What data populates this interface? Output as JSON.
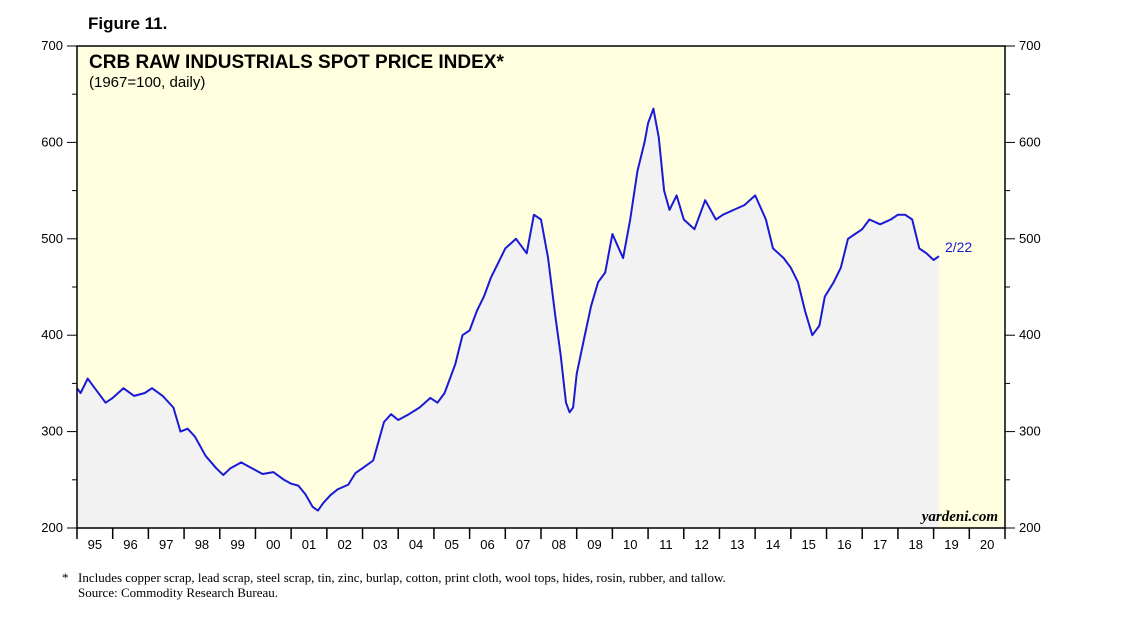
{
  "figure_label": "Figure 11.",
  "colors": {
    "background": "#ffffe0",
    "fill": "#f2f2f2",
    "line": "#1a1ad6",
    "text": "#000000"
  },
  "chart_data": {
    "type": "line",
    "title": "CRB RAW INDUSTRIALS SPOT PRICE INDEX*",
    "subtitle": "(1967=100, daily)",
    "ylim": [
      200,
      700
    ],
    "y_ticks": [
      200,
      300,
      400,
      500,
      600,
      700
    ],
    "y_tick_labels": [
      "200",
      "300",
      "400",
      "500",
      "600",
      "700"
    ],
    "x_range": [
      1995,
      2021
    ],
    "x_tick_labels": [
      "95",
      "96",
      "97",
      "98",
      "99",
      "00",
      "01",
      "02",
      "03",
      "04",
      "05",
      "06",
      "07",
      "08",
      "09",
      "10",
      "11",
      "12",
      "13",
      "14",
      "15",
      "16",
      "17",
      "18",
      "19",
      "20"
    ],
    "end_label": "2/22",
    "watermark": "yardeni.com",
    "series": [
      {
        "name": "CRB Raw Industrials Spot Price Index",
        "x": [
          1995.0,
          1995.1,
          1995.3,
          1995.5,
          1995.8,
          1996.0,
          1996.3,
          1996.6,
          1996.9,
          1997.1,
          1997.4,
          1997.7,
          1997.9,
          1998.1,
          1998.3,
          1998.6,
          1998.9,
          1999.1,
          1999.3,
          1999.6,
          1999.9,
          2000.2,
          2000.5,
          2000.8,
          2001.0,
          2001.2,
          2001.4,
          2001.6,
          2001.75,
          2001.9,
          2002.1,
          2002.3,
          2002.6,
          2002.8,
          2003.0,
          2003.3,
          2003.6,
          2003.8,
          2004.0,
          2004.3,
          2004.6,
          2004.9,
          2005.1,
          2005.3,
          2005.6,
          2005.8,
          2006.0,
          2006.2,
          2006.4,
          2006.6,
          2006.8,
          2007.0,
          2007.3,
          2007.6,
          2007.8,
          2008.0,
          2008.2,
          2008.4,
          2008.55,
          2008.7,
          2008.8,
          2008.9,
          2009.0,
          2009.2,
          2009.4,
          2009.6,
          2009.8,
          2010.0,
          2010.3,
          2010.5,
          2010.7,
          2010.9,
          2011.0,
          2011.15,
          2011.3,
          2011.45,
          2011.6,
          2011.8,
          2012.0,
          2012.3,
          2012.6,
          2012.9,
          2013.1,
          2013.4,
          2013.7,
          2014.0,
          2014.3,
          2014.5,
          2014.8,
          2015.0,
          2015.2,
          2015.4,
          2015.6,
          2015.8,
          2015.95,
          2016.2,
          2016.4,
          2016.6,
          2016.8,
          2017.0,
          2017.2,
          2017.5,
          2017.8,
          2018.0,
          2018.2,
          2018.4,
          2018.6,
          2018.8,
          2019.0,
          2019.15
        ],
        "values": [
          345,
          340,
          355,
          345,
          330,
          335,
          345,
          337,
          340,
          345,
          337,
          325,
          300,
          303,
          295,
          275,
          262,
          255,
          262,
          268,
          262,
          256,
          258,
          250,
          246,
          244,
          235,
          222,
          218,
          226,
          234,
          240,
          245,
          257,
          262,
          270,
          310,
          318,
          312,
          318,
          325,
          335,
          330,
          340,
          370,
          400,
          405,
          425,
          440,
          460,
          475,
          490,
          500,
          485,
          525,
          520,
          480,
          420,
          380,
          330,
          320,
          325,
          360,
          395,
          430,
          455,
          465,
          505,
          480,
          520,
          570,
          600,
          620,
          635,
          605,
          550,
          530,
          545,
          520,
          510,
          540,
          520,
          525,
          530,
          535,
          545,
          520,
          490,
          480,
          470,
          455,
          425,
          400,
          410,
          440,
          455,
          470,
          500,
          505,
          510,
          520,
          515,
          520,
          525,
          525,
          520,
          490,
          485,
          478,
          482
        ]
      }
    ]
  },
  "footnote": {
    "marker": "*",
    "line1": "Includes copper scrap, lead scrap, steel scrap, tin, zinc, burlap, cotton, print cloth, wool tops, hides, rosin, rubber, and tallow.",
    "line2": "Source: Commodity Research Bureau."
  }
}
